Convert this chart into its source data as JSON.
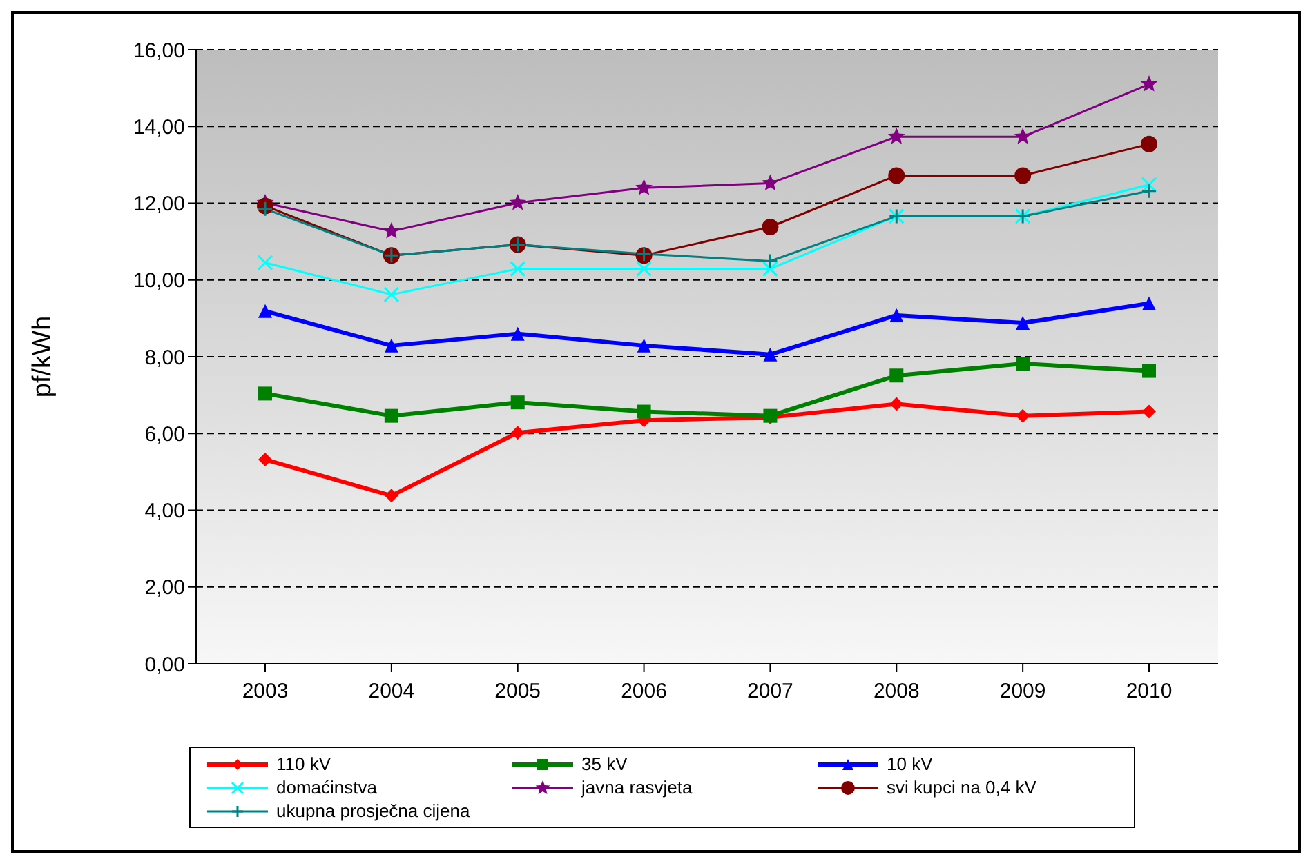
{
  "chart_data": {
    "type": "line",
    "ylabel": "pf/kWh",
    "categories": [
      "2003",
      "2004",
      "2005",
      "2006",
      "2007",
      "2008",
      "2009",
      "2010"
    ],
    "ylim": [
      0,
      16
    ],
    "yticks": [
      {
        "value": 0,
        "label": "0,00"
      },
      {
        "value": 2,
        "label": "2,00"
      },
      {
        "value": 4,
        "label": "4,00"
      },
      {
        "value": 6,
        "label": "6,00"
      },
      {
        "value": 8,
        "label": "8,00"
      },
      {
        "value": 10,
        "label": "10,00"
      },
      {
        "value": 12,
        "label": "12,00"
      },
      {
        "value": 14,
        "label": "14,00"
      },
      {
        "value": 16,
        "label": "16,00"
      }
    ],
    "grid": "y",
    "legend": "bottom",
    "line_style": "solid",
    "series": [
      {
        "name": "110 kV",
        "color": "#ff0000",
        "marker": "diamond",
        "values": [
          5.32,
          4.38,
          6.02,
          6.34,
          6.42,
          6.77,
          6.46,
          6.57
        ]
      },
      {
        "name": "35 kV",
        "color": "#008000",
        "marker": "square",
        "values": [
          7.04,
          6.46,
          6.81,
          6.57,
          6.46,
          7.51,
          7.82,
          7.63
        ]
      },
      {
        "name": "10 kV",
        "color": "#0000ff",
        "marker": "triangle",
        "values": [
          9.19,
          8.29,
          8.6,
          8.29,
          8.06,
          9.08,
          8.88,
          9.39
        ]
      },
      {
        "name": "domaćinstva",
        "color": "#00ffff",
        "marker": "cross",
        "values": [
          10.45,
          9.62,
          10.29,
          10.29,
          10.29,
          11.66,
          11.66,
          12.48
        ]
      },
      {
        "name": "javna rasvjeta",
        "color": "#800080",
        "marker": "star",
        "values": [
          12.01,
          11.27,
          12.01,
          12.4,
          12.52,
          13.73,
          13.73,
          15.1
        ]
      },
      {
        "name": "svi kupci na 0,4 kV",
        "color": "#800000",
        "marker": "circle",
        "values": [
          11.93,
          10.64,
          10.92,
          10.64,
          11.38,
          12.72,
          12.72,
          13.54
        ]
      },
      {
        "name": "ukupna prosječna cijena",
        "color": "#008080",
        "marker": "plus",
        "values": [
          11.85,
          10.64,
          10.92,
          10.68,
          10.49,
          11.66,
          11.66,
          12.32
        ]
      }
    ]
  }
}
